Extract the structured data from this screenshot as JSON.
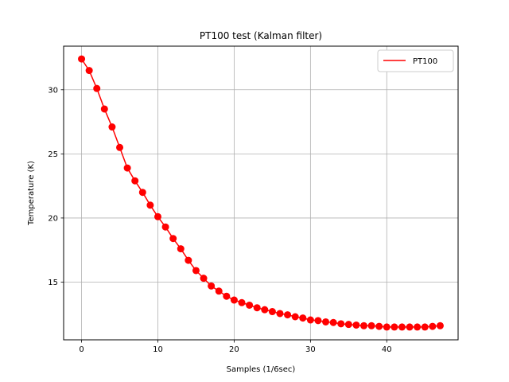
{
  "chart_data": {
    "type": "line",
    "title": "PT100 test (Kalman filter)",
    "xlabel": "Samples (1/6sec)",
    "ylabel": "Temperature (K)",
    "xlim": [
      -2.35,
      49.35
    ],
    "ylim": [
      10.5,
      33.4
    ],
    "xticks": [
      0,
      10,
      20,
      30,
      40
    ],
    "yticks": [
      15,
      20,
      25,
      30
    ],
    "grid": true,
    "legend_position": "top-right",
    "markers": "circle",
    "series": [
      {
        "name": "PT100",
        "color": "#ff0000",
        "x": [
          0,
          1,
          2,
          3,
          4,
          5,
          6,
          7,
          8,
          9,
          10,
          11,
          12,
          13,
          14,
          15,
          16,
          17,
          18,
          19,
          20,
          21,
          22,
          23,
          24,
          25,
          26,
          27,
          28,
          29,
          30,
          31,
          32,
          33,
          34,
          35,
          36,
          37,
          38,
          39,
          40,
          41,
          42,
          43,
          44,
          45,
          46,
          47
        ],
        "values": [
          32.4,
          31.5,
          30.1,
          28.5,
          27.1,
          25.5,
          23.9,
          22.9,
          22.0,
          21.0,
          20.1,
          19.3,
          18.4,
          17.6,
          16.7,
          15.9,
          15.3,
          14.7,
          14.3,
          13.9,
          13.6,
          13.4,
          13.2,
          13.0,
          12.85,
          12.7,
          12.55,
          12.45,
          12.3,
          12.2,
          12.05,
          12.0,
          11.9,
          11.85,
          11.75,
          11.7,
          11.65,
          11.6,
          11.6,
          11.55,
          11.5,
          11.5,
          11.5,
          11.5,
          11.5,
          11.5,
          11.55,
          11.6
        ]
      }
    ]
  }
}
